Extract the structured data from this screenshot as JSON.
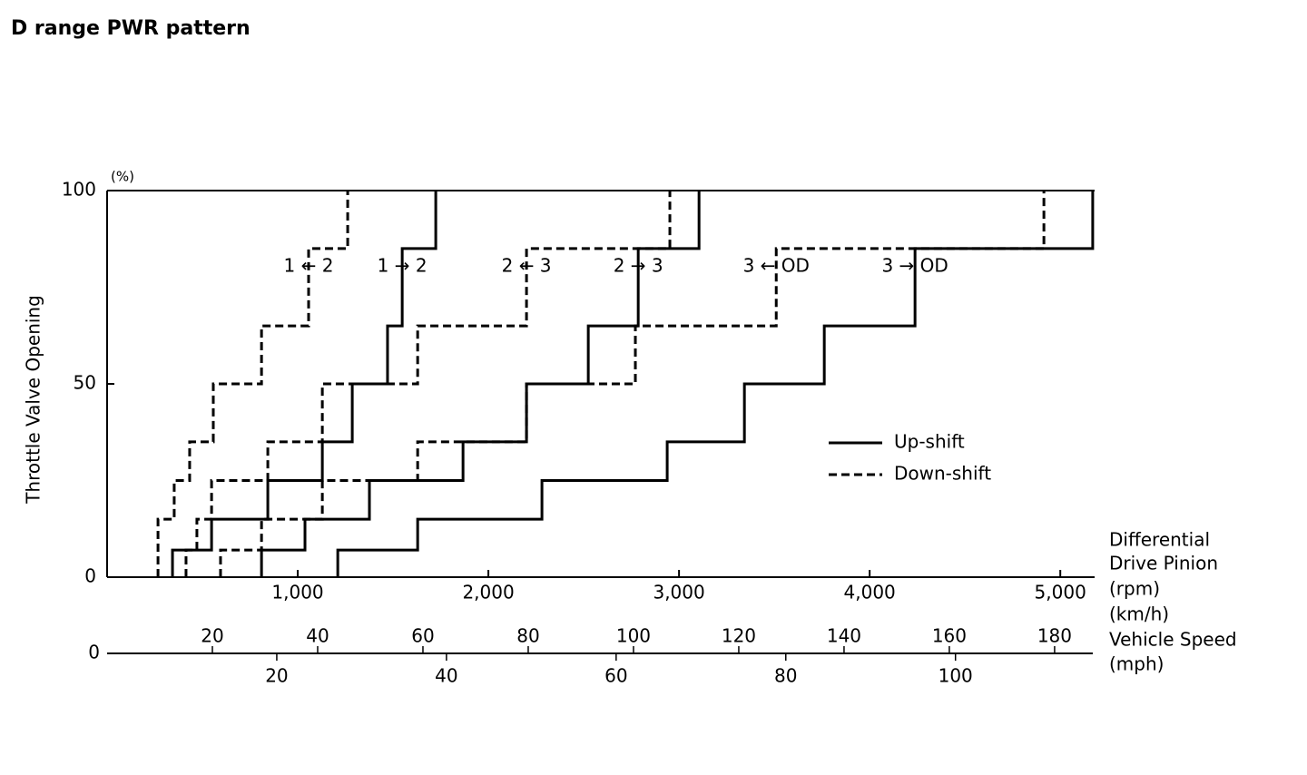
{
  "chart_data": {
    "type": "step-line",
    "title": "D range PWR pattern",
    "y_label": "Throttle Valve Opening",
    "y_unit": "(%)",
    "ylim": [
      0,
      100
    ],
    "yticks": [
      0,
      50,
      100
    ],
    "xlim": [
      0,
      5180
    ],
    "xticks": [
      {
        "value": 1000,
        "label": "1,000"
      },
      {
        "value": 2000,
        "label": "2,000"
      },
      {
        "value": 3000,
        "label": "3,000"
      },
      {
        "value": 4000,
        "label": "4,000"
      },
      {
        "value": 5000,
        "label": "5,000"
      }
    ],
    "x_label": [
      "Differential",
      "Drive Pinion",
      "(rpm)"
    ],
    "speed_axis": {
      "label": "Vehicle Speed",
      "origin": 0,
      "kmh": {
        "unit": "(km/h)",
        "xlim": [
          0,
          187.6
        ],
        "xticks": [
          20,
          40,
          60,
          80,
          100,
          120,
          140,
          160,
          180
        ]
      },
      "mph": {
        "unit": "(mph)",
        "xlim": [
          0,
          116.4
        ],
        "xticks": [
          20,
          40,
          60,
          80,
          100
        ]
      }
    },
    "series": [
      {
        "name": "Up-shift",
        "dashed": false,
        "color": "#000000",
        "lines": [
          {
            "label": "1 → 2",
            "x": [
              343,
              343,
              548,
              548,
              843,
              843,
              1129,
              1129,
              1286,
              1286,
              1471,
              1471,
              1548,
              1548,
              1724,
              1724
            ],
            "values": [
              0,
              7,
              7,
              15,
              15,
              25,
              25,
              35,
              35,
              50,
              50,
              65,
              65,
              85,
              85,
              100
            ]
          },
          {
            "label": "2 → 3",
            "x": [
              810,
              810,
              1038,
              1038,
              1376,
              1376,
              1867,
              1867,
              2200,
              2200,
              2524,
              2524,
              2786,
              2786,
              3105,
              3105
            ],
            "values": [
              0,
              7,
              7,
              15,
              15,
              25,
              25,
              35,
              35,
              50,
              50,
              65,
              65,
              85,
              85,
              100
            ]
          },
          {
            "label": "3 → OD",
            "x": [
              1210,
              1210,
              1629,
              1629,
              2281,
              2281,
              2938,
              2938,
              3343,
              3343,
              3762,
              3762,
              4238,
              4238,
              5170,
              5170
            ],
            "values": [
              0,
              7,
              7,
              15,
              15,
              25,
              25,
              35,
              35,
              50,
              50,
              65,
              65,
              85,
              85,
              100
            ]
          }
        ]
      },
      {
        "name": "Down-shift",
        "dashed": true,
        "color": "#000000",
        "lines": [
          {
            "label": "1 ← 2",
            "x": [
              267,
              267,
              352,
              352,
              433,
              433,
              557,
              557,
              810,
              810,
              1057,
              1057,
              1262,
              1262
            ],
            "values": [
              0,
              15,
              15,
              25,
              25,
              35,
              35,
              50,
              50,
              65,
              65,
              85,
              85,
              100
            ]
          },
          {
            "label": "2 ← 3",
            "x": [
              414,
              414,
              471,
              471,
              548,
              548,
              843,
              843,
              1129,
              1129,
              1629,
              1629,
              2200,
              2200,
              2952,
              2952
            ],
            "values": [
              0,
              7,
              7,
              15,
              15,
              25,
              25,
              35,
              35,
              50,
              50,
              65,
              65,
              85,
              85,
              100
            ]
          },
          {
            "label": "3 ← OD",
            "x": [
              595,
              595,
              810,
              810,
              1129,
              1129,
              1629,
              1629,
              2200,
              2200,
              2771,
              2771,
              3510,
              3510,
              4914,
              4914
            ],
            "values": [
              0,
              7,
              7,
              15,
              15,
              25,
              25,
              35,
              35,
              50,
              50,
              65,
              65,
              85,
              85,
              100
            ]
          }
        ]
      }
    ]
  }
}
